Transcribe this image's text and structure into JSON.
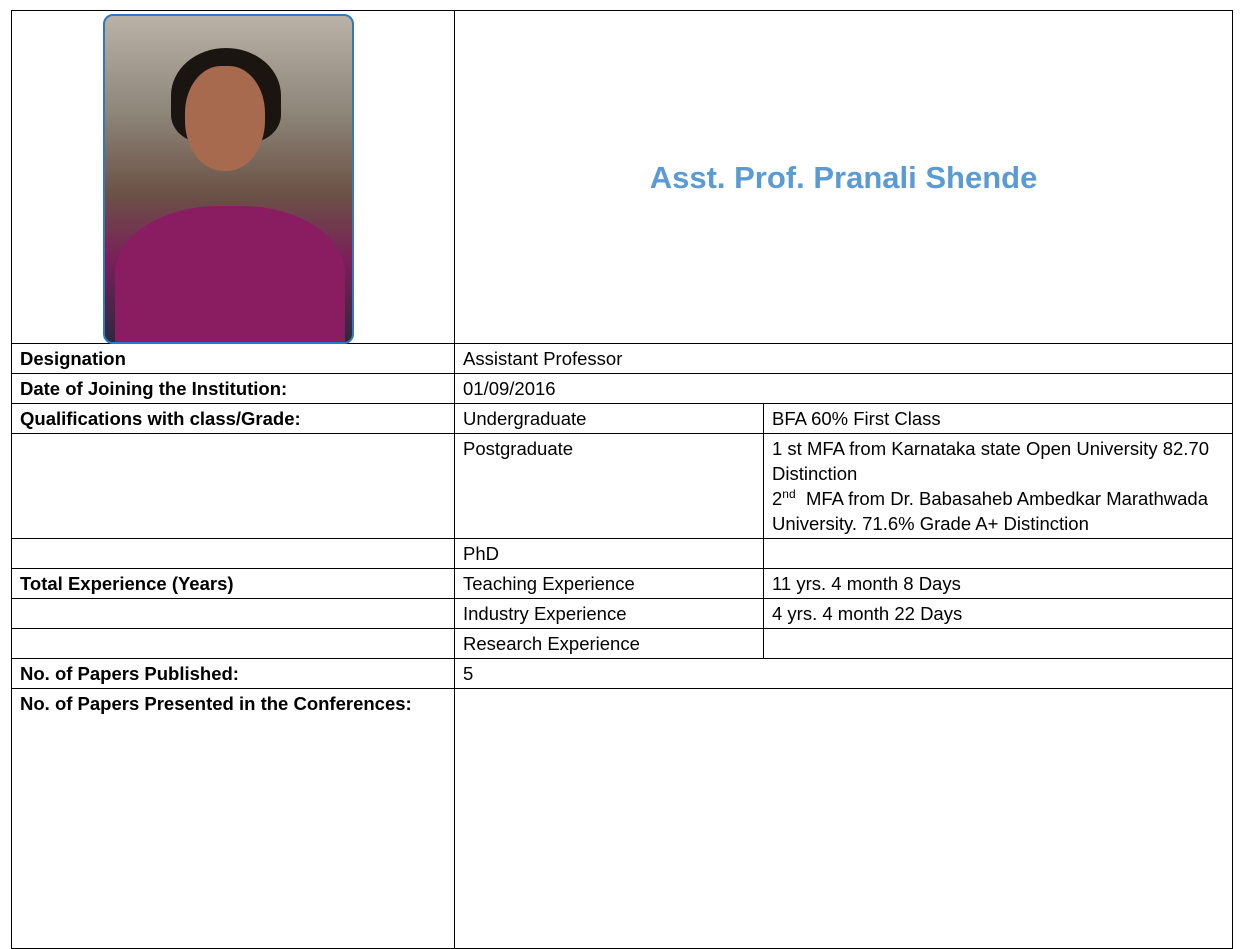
{
  "header": {
    "name": "Asst. Prof. Pranali Shende"
  },
  "table": {
    "rows": [
      [
        "Designation",
        "Assistant Professor"
      ],
      [
        "Date of Joining the Institution:",
        "01/09/2016"
      ],
      [
        "Qualifications with class/Grade:",
        "Undergraduate",
        "BFA 60% First Class"
      ],
      [
        "Postgraduate",
        "1 st MFA from Karnataka state Open University 82.70 Distinction",
        "2",
        "nd",
        "MFA from Dr. Babasaheb Ambedkar Marathwada University. 71.6% Grade A+ Distinction"
      ],
      [
        "PhD"
      ],
      [
        "Total Experience (Years)",
        "Teaching Experience",
        "11 yrs. 4 month 8 Days"
      ],
      [
        "Industry Experience",
        "4 yrs. 4 month 22 Days"
      ],
      [
        "Research Experience"
      ],
      [
        "No. of Papers Published:",
        "5"
      ],
      [
        "No. of Papers Presented in the Conferences:"
      ]
    ]
  }
}
